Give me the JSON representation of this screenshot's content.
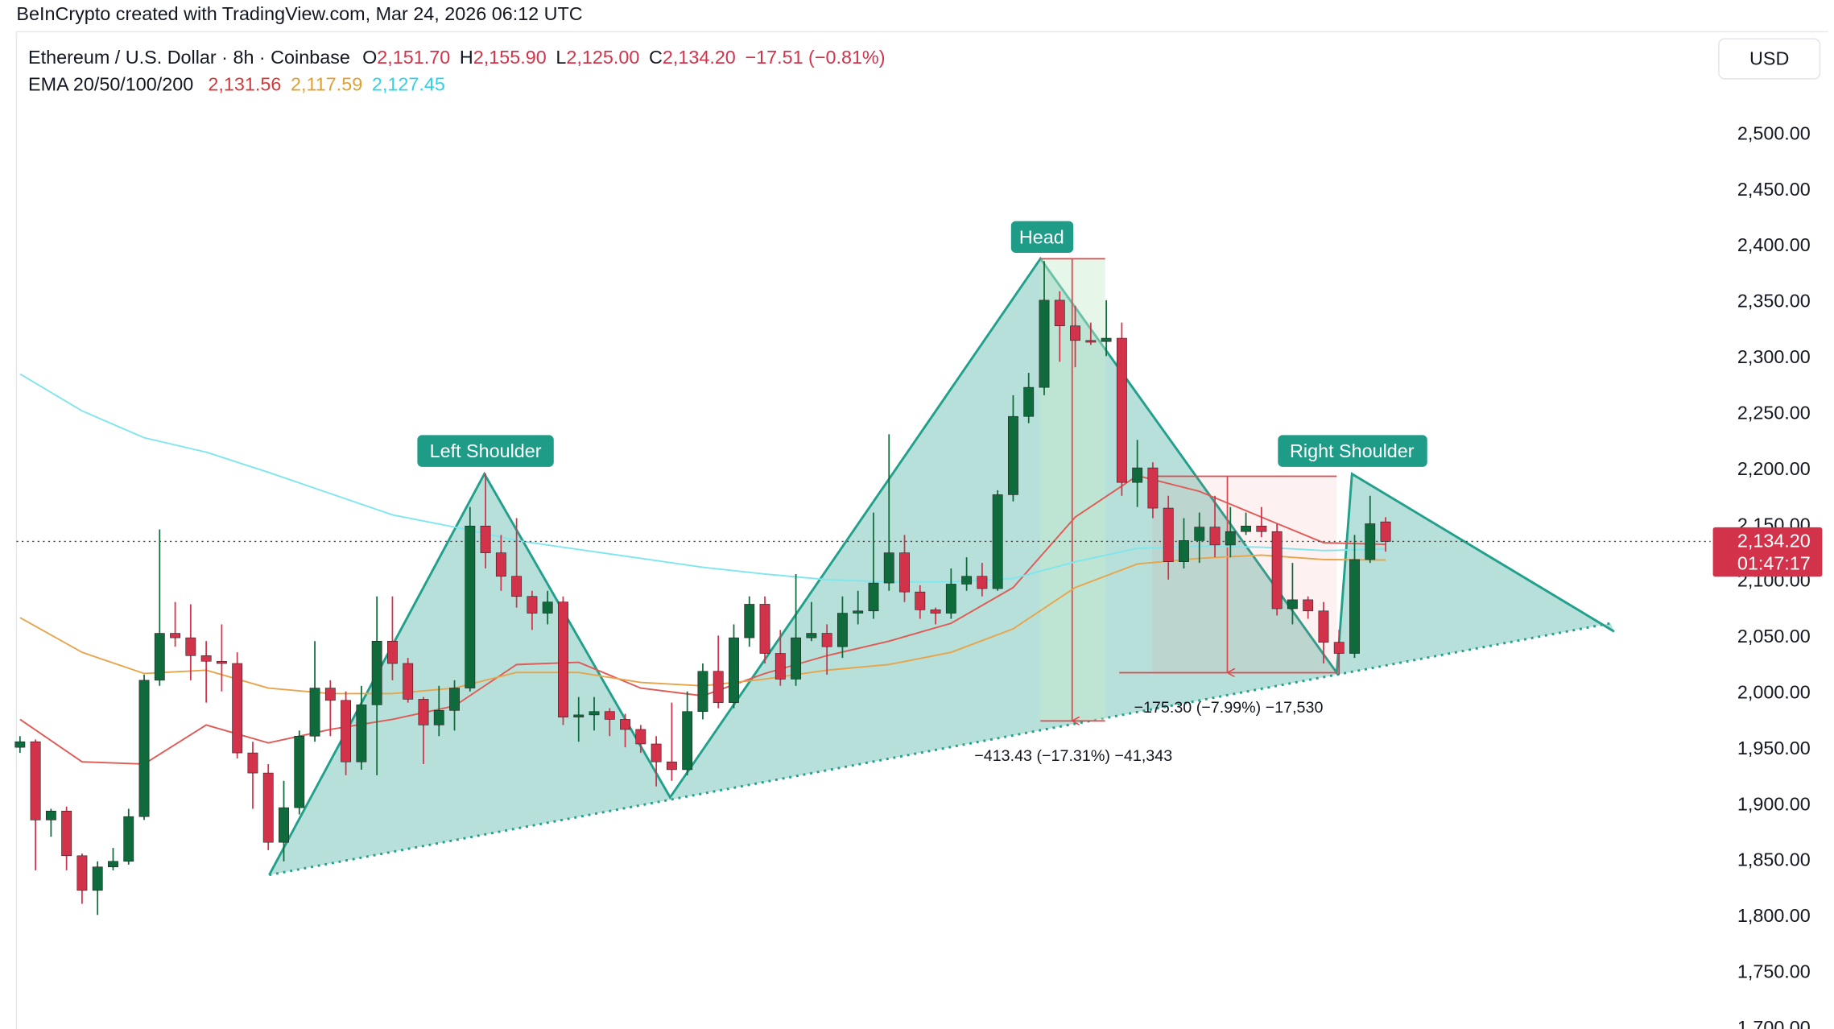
{
  "header": {
    "credit": "BeInCrypto created with TradingView.com, Mar 24, 2026 06:12 UTC"
  },
  "chart_data": {
    "type": "candlestick",
    "symbol": "Ethereum / U.S. Dollar · 8h · Coinbase",
    "ohlc_legend": [
      {
        "key": "O",
        "value": "2,151.70"
      },
      {
        "key": "H",
        "value": "2,155.90"
      },
      {
        "key": "L",
        "value": "2,125.00"
      },
      {
        "key": "C",
        "value": "2,134.20"
      }
    ],
    "change": "−17.51 (−0.81%)",
    "ema_legend": "EMA 20/50/100/200",
    "currency": "USD",
    "up_color": "#0f6b3c",
    "down_color": "#d2334a",
    "candles": {
      "open": [
        1950,
        1955,
        1885,
        1893,
        1853,
        1822,
        1843,
        1848,
        1888,
        2010,
        2052,
        2048,
        2032,
        2027,
        2025,
        1945,
        1927,
        1865,
        1896,
        1960,
        2003,
        1992,
        1937,
        1988,
        2045,
        2025,
        1993,
        1970,
        1983,
        2003,
        2148,
        2124,
        2103,
        2085,
        2070,
        2080,
        1977,
        1979,
        1982,
        1975,
        1966,
        1953,
        1937,
        1930,
        1982,
        2018,
        1990,
        2048,
        2078,
        2034,
        2011,
        2048,
        2052,
        2040,
        2070,
        2072,
        2097,
        2124,
        2089,
        2073,
        2070,
        2096,
        2103,
        2092,
        2176,
        2246,
        2272,
        2350,
        2327,
        2314,
        2313,
        2316,
        2187,
        2200,
        2164,
        2116,
        2135,
        2147,
        2131,
        2143,
        2148,
        2143,
        2074,
        2082,
        2072,
        2044,
        2034,
        2118,
        2151.7
      ],
      "high": [
        1960,
        1957,
        1895,
        1897,
        1855,
        1848,
        1860,
        1895,
        2015,
        2145,
        2080,
        2078,
        2045,
        2060,
        2035,
        1955,
        1935,
        1920,
        1965,
        2045,
        2010,
        2000,
        2005,
        2085,
        2085,
        2030,
        1995,
        2005,
        2010,
        2165,
        2195,
        2140,
        2155,
        2090,
        2090,
        2085,
        1995,
        1995,
        1985,
        1980,
        1970,
        1960,
        1990,
        2000,
        2025,
        2050,
        2060,
        2085,
        2085,
        2055,
        2105,
        2080,
        2060,
        2085,
        2090,
        2160,
        2230,
        2140,
        2095,
        2075,
        2110,
        2120,
        2115,
        2180,
        2265,
        2285,
        2385,
        2358,
        2345,
        2330,
        2350,
        2330,
        2225,
        2205,
        2175,
        2155,
        2160,
        2175,
        2165,
        2160,
        2165,
        2150,
        2115,
        2085,
        2080,
        2055,
        2140,
        2175,
        2155.9
      ],
      "low": [
        1945,
        1840,
        1870,
        1840,
        1810,
        1800,
        1840,
        1845,
        1885,
        2005,
        2040,
        2010,
        1990,
        2000,
        1940,
        1895,
        1858,
        1848,
        1890,
        1955,
        1960,
        1925,
        1930,
        1925,
        2010,
        1990,
        1935,
        1960,
        1965,
        2000,
        2110,
        2090,
        2075,
        2055,
        2060,
        1970,
        1955,
        1965,
        1960,
        1950,
        1945,
        1915,
        1920,
        1925,
        1975,
        1985,
        1985,
        2040,
        2025,
        2005,
        2005,
        2045,
        2015,
        2030,
        2060,
        2065,
        2090,
        2080,
        2065,
        2060,
        2065,
        2090,
        2085,
        2090,
        2170,
        2240,
        2265,
        2295,
        2290,
        2310,
        2300,
        2175,
        2165,
        2155,
        2100,
        2110,
        2115,
        2120,
        2120,
        2140,
        2138,
        2068,
        2060,
        2065,
        2025,
        2015,
        2030,
        2115,
        2125
      ],
      "close": [
        1955,
        1885,
        1893,
        1853,
        1822,
        1843,
        1848,
        1888,
        2010,
        2052,
        2048,
        2032,
        2027,
        2025,
        1945,
        1927,
        1865,
        1896,
        1960,
        2003,
        1992,
        1937,
        1988,
        2045,
        2025,
        1993,
        1970,
        1983,
        2003,
        2148,
        2124,
        2103,
        2085,
        2070,
        2080,
        1977,
        1979,
        1982,
        1975,
        1966,
        1953,
        1937,
        1930,
        1982,
        2018,
        1990,
        2048,
        2078,
        2034,
        2011,
        2048,
        2052,
        2040,
        2070,
        2072,
        2097,
        2124,
        2089,
        2073,
        2070,
        2096,
        2103,
        2092,
        2176,
        2246,
        2272,
        2350,
        2327,
        2314,
        2313,
        2316,
        2187,
        2200,
        2164,
        2116,
        2135,
        2147,
        2131,
        2143,
        2148,
        2143,
        2074,
        2082,
        2072,
        2044,
        2034,
        2118,
        2150,
        2134.2
      ]
    },
    "series": [
      {
        "color": "#e05a55",
        "label_color": "#d33a3a",
        "last_label": "2,131.56",
        "x": [
          0,
          4,
          8,
          12,
          16,
          20,
          24,
          28,
          32,
          36,
          40,
          44,
          48,
          52,
          56,
          60,
          64,
          68,
          72,
          76,
          80,
          84,
          88
        ],
        "values": [
          1975,
          1937,
          1935,
          1970,
          1954,
          1966,
          1975,
          1987,
          2024,
          2026,
          2003,
          1996,
          2016,
          2032,
          2045,
          2061,
          2093,
          2156,
          2193,
          2179,
          2156,
          2133,
          2131.56
        ]
      },
      {
        "color": "#e8a44a",
        "label_color": "#e0a030",
        "last_label": "2,117.59",
        "x": [
          0,
          4,
          8,
          12,
          16,
          20,
          24,
          28,
          32,
          36,
          40,
          44,
          48,
          52,
          56,
          60,
          64,
          68,
          72,
          76,
          80,
          84,
          88
        ],
        "values": [
          2066,
          2035,
          2016,
          2019,
          2003,
          1998,
          1998,
          2003,
          2017,
          2017,
          2008,
          2005,
          2011,
          2019,
          2024,
          2035,
          2056,
          2093,
          2114,
          2119,
          2122,
          2118,
          2117.59
        ]
      },
      {
        "color": "#7fe6ee",
        "label_color": "#2ed3e6",
        "last_label": "2,127.45",
        "x": [
          0,
          4,
          8,
          12,
          16,
          20,
          24,
          28,
          32,
          36,
          40,
          44,
          48,
          52,
          56,
          60,
          64,
          68,
          72,
          76,
          80,
          84,
          88
        ],
        "values": [
          2284,
          2251,
          2227,
          2214,
          2196,
          2177,
          2158,
          2147,
          2135,
          2127,
          2119,
          2111,
          2105,
          2100,
          2098,
          2098,
          2101,
          2116,
          2128,
          2130,
          2129,
          2126,
          2127.45
        ]
      }
    ],
    "last_price": {
      "value": 2134.2,
      "label": "2,134.20"
    },
    "countdown": "01:47:17",
    "ylim": [
      1698,
      2587
    ],
    "yticks": [
      {
        "value": 1700,
        "label": "1,700.00"
      },
      {
        "value": 1750,
        "label": "1,750.00"
      },
      {
        "value": 1800,
        "label": "1,800.00"
      },
      {
        "value": 1850,
        "label": "1,850.00"
      },
      {
        "value": 1900,
        "label": "1,900.00"
      },
      {
        "value": 1950,
        "label": "1,950.00"
      },
      {
        "value": 2000,
        "label": "2,000.00"
      },
      {
        "value": 2050,
        "label": "2,050.00"
      },
      {
        "value": 2100,
        "label": "2,100.00"
      },
      {
        "value": 2150,
        "label": "2,150.00"
      },
      {
        "value": 2200,
        "label": "2,200.00"
      },
      {
        "value": 2250,
        "label": "2,250.00"
      },
      {
        "value": 2300,
        "label": "2,300.00"
      },
      {
        "value": 2350,
        "label": "2,350.00"
      },
      {
        "value": 2400,
        "label": "2,400.00"
      },
      {
        "value": 2450,
        "label": "2,450.00"
      },
      {
        "value": 2500,
        "label": "2,500.00"
      }
    ],
    "grid": false,
    "annotations": {
      "left_shoulder": "Left Shoulder",
      "head": "Head",
      "right_shoulder": "Right Shoulder",
      "measure_right": "−175.30 (−7.99%) −17,530",
      "measure_head": "−413.43 (−17.31%) −41,343"
    }
  }
}
